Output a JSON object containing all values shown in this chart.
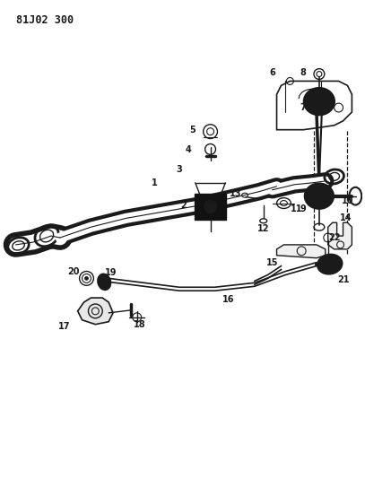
{
  "title": "81J02 300",
  "bg_color": "#ffffff",
  "lc": "#1a1a1a",
  "title_fontsize": 8.5,
  "label_fontsize": 7,
  "fig_width": 4.07,
  "fig_height": 5.33,
  "dpi": 100
}
